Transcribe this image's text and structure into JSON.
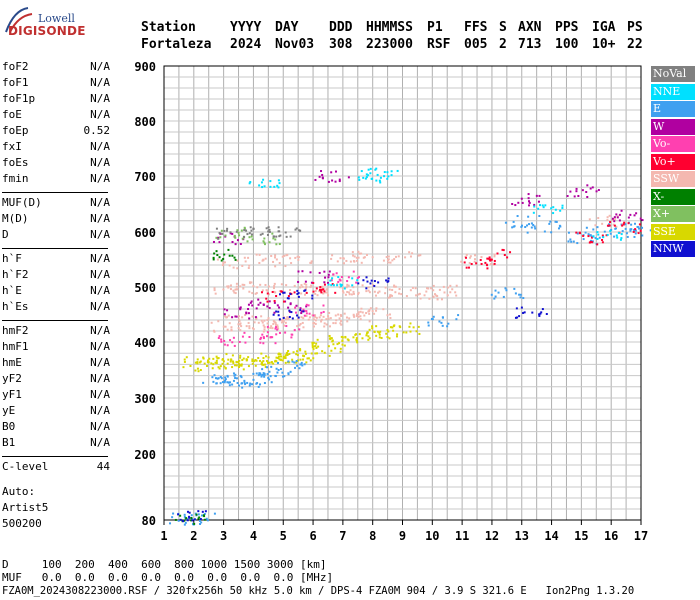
{
  "logo": {
    "top": "Lowell",
    "bottom": "DIGISONDE"
  },
  "header": {
    "line1": [
      "Station",
      "YYYY",
      "DAY",
      "DDD",
      "HHMMSS",
      "P1",
      "FFS",
      "S",
      "AXN",
      "PPS",
      "IGA",
      "PS"
    ],
    "line2": [
      "Fortaleza",
      "2024",
      "Nov03",
      "308",
      "223000",
      "RSF",
      "005",
      "2",
      "713",
      "100",
      "10+",
      "22"
    ]
  },
  "params": [
    {
      "name": "foF2",
      "value": "N/A"
    },
    {
      "name": "foF1",
      "value": "N/A"
    },
    {
      "name": "foF1p",
      "value": "N/A"
    },
    {
      "name": "foE",
      "value": "N/A"
    },
    {
      "name": "foEp",
      "value": "0.52"
    },
    {
      "name": "fxI",
      "value": "N/A"
    },
    {
      "name": "foEs",
      "value": "N/A"
    },
    {
      "name": "fmin",
      "value": "N/A"
    },
    {
      "name": "MUF(D)",
      "value": "N/A"
    },
    {
      "name": "M(D)",
      "value": "N/A"
    },
    {
      "name": "D",
      "value": "N/A"
    },
    {
      "name": "h`F",
      "value": "N/A"
    },
    {
      "name": "h`F2",
      "value": "N/A"
    },
    {
      "name": "h`E",
      "value": "N/A"
    },
    {
      "name": "h`Es",
      "value": "N/A"
    },
    {
      "name": "hmF2",
      "value": "N/A"
    },
    {
      "name": "hmF1",
      "value": "N/A"
    },
    {
      "name": "hmE",
      "value": "N/A"
    },
    {
      "name": "yF2",
      "value": "N/A"
    },
    {
      "name": "yF1",
      "value": "N/A"
    },
    {
      "name": "yE",
      "value": "N/A"
    },
    {
      "name": "B0",
      "value": "N/A"
    },
    {
      "name": "B1",
      "value": "N/A"
    },
    {
      "name": "C-level",
      "value": "44"
    }
  ],
  "auto": {
    "label": "Auto:",
    "name": "Artist5",
    "version": "500200"
  },
  "footer": {
    "d_row": "D     100  200  400  600  800 1000 1500 3000 [km]",
    "muf_row": "MUF   0.0  0.0  0.0  0.0  0.0  0.0  0.0  0.0 [MHz]",
    "file_row": "FZA0M_2024308223000.RSF / 320fx256h 50 kHz 5.0 km / DPS-4 FZA0M 904 / 3.9 S 321.6 E   Ion2Png 1.3.20"
  },
  "legend": [
    {
      "label": "NoVal",
      "color": "#808080"
    },
    {
      "label": "NNE",
      "color": "#00e0ff"
    },
    {
      "label": "E",
      "color": "#3fa0f0"
    },
    {
      "label": "W",
      "color": "#b000a0"
    },
    {
      "label": "Vo-",
      "color": "#ff40b0"
    },
    {
      "label": "Vo+",
      "color": "#ff0030"
    },
    {
      "label": "SSW",
      "color": "#f4b8b0"
    },
    {
      "label": "X-",
      "color": "#008000"
    },
    {
      "label": "X+",
      "color": "#80c060"
    },
    {
      "label": "SSE",
      "color": "#d8d800"
    },
    {
      "label": "NNW",
      "color": "#1010d0"
    }
  ],
  "chart_data": {
    "type": "scatter",
    "x_ticks": [
      1,
      2,
      3,
      4,
      5,
      6,
      7,
      8,
      9,
      10,
      11,
      12,
      13,
      14,
      15,
      16,
      17
    ],
    "y_ticks": [
      80,
      200,
      300,
      400,
      500,
      600,
      700,
      800,
      900
    ],
    "xlim": [
      1,
      17
    ],
    "ylim": [
      80,
      900
    ],
    "grid": true,
    "legend_position": "right",
    "series": [
      {
        "name": "SSE",
        "color": "#d8d800",
        "points": [
          [
            2.1,
            365
          ],
          [
            2.5,
            360
          ],
          [
            3.0,
            370
          ],
          [
            3.3,
            365
          ],
          [
            3.6,
            360
          ],
          [
            4.0,
            368
          ],
          [
            4.3,
            372
          ],
          [
            4.6,
            366
          ],
          [
            5.0,
            370
          ],
          [
            5.3,
            375
          ],
          [
            5.6,
            378
          ],
          [
            6.0,
            385
          ],
          [
            6.5,
            395
          ],
          [
            7.0,
            405
          ],
          [
            7.5,
            410
          ],
          [
            8.0,
            415
          ],
          [
            8.5,
            420
          ],
          [
            9.0,
            425
          ]
        ]
      },
      {
        "name": "E",
        "color": "#3fa0f0",
        "points": [
          [
            2.8,
            335
          ],
          [
            3.2,
            330
          ],
          [
            3.6,
            332
          ],
          [
            4.0,
            335
          ],
          [
            4.4,
            338
          ],
          [
            4.8,
            350
          ],
          [
            5.2,
            360
          ],
          [
            1.7,
            83
          ],
          [
            2.2,
            85
          ],
          [
            10.3,
            440
          ],
          [
            12.5,
            490
          ],
          [
            13.0,
            620
          ],
          [
            13.7,
            610
          ],
          [
            15.0,
            590
          ],
          [
            15.6,
            600
          ],
          [
            16.3,
            610
          ],
          [
            16.9,
            600
          ]
        ]
      },
      {
        "name": "SSW",
        "color": "#f4b8b0",
        "points": [
          [
            3.0,
            430
          ],
          [
            3.5,
            440
          ],
          [
            4.0,
            430
          ],
          [
            4.5,
            440
          ],
          [
            5.0,
            435
          ],
          [
            5.5,
            440
          ],
          [
            6.0,
            438
          ],
          [
            6.5,
            440
          ],
          [
            7.0,
            445
          ],
          [
            7.5,
            450
          ],
          [
            8.0,
            455
          ],
          [
            3.1,
            498
          ],
          [
            3.8,
            500
          ],
          [
            4.5,
            495
          ],
          [
            5.2,
            498
          ],
          [
            6.0,
            495
          ],
          [
            6.8,
            498
          ],
          [
            7.5,
            495
          ],
          [
            8.3,
            492
          ],
          [
            9.0,
            495
          ],
          [
            10.0,
            490
          ],
          [
            10.4,
            495
          ],
          [
            3.3,
            545
          ],
          [
            4.5,
            550
          ],
          [
            5.5,
            550
          ],
          [
            7.0,
            555
          ],
          [
            8.0,
            555
          ],
          [
            9.0,
            555
          ],
          [
            11.5,
            550
          ],
          [
            15.8,
            620
          ]
        ]
      },
      {
        "name": "W",
        "color": "#b000a0",
        "points": [
          [
            3.5,
            455
          ],
          [
            4.0,
            470
          ],
          [
            5.2,
            465
          ],
          [
            6.0,
            520
          ],
          [
            3.2,
            590
          ],
          [
            6.6,
            700
          ],
          [
            13.2,
            660
          ],
          [
            15.0,
            675
          ],
          [
            16.5,
            630
          ]
        ]
      },
      {
        "name": "Vo-",
        "color": "#ff40b0",
        "points": [
          [
            3.3,
            405
          ],
          [
            4.2,
            410
          ],
          [
            5.0,
            420
          ],
          [
            5.8,
            460
          ],
          [
            7.0,
            520
          ]
        ]
      },
      {
        "name": "Vo+",
        "color": "#ff0030",
        "points": [
          [
            4.8,
            485
          ],
          [
            6.2,
            500
          ],
          [
            11.6,
            545
          ],
          [
            12.3,
            560
          ],
          [
            15.3,
            590
          ],
          [
            16.4,
            610
          ]
        ]
      },
      {
        "name": "NNE",
        "color": "#00e0ff",
        "points": [
          [
            8.0,
            700
          ],
          [
            8.3,
            705
          ],
          [
            4.4,
            690
          ],
          [
            7.0,
            510
          ],
          [
            13.8,
            640
          ],
          [
            15.9,
            595
          ]
        ]
      },
      {
        "name": "X-",
        "color": "#008000",
        "points": [
          [
            3.0,
            560
          ],
          [
            1.9,
            85
          ]
        ]
      },
      {
        "name": "X+",
        "color": "#80c060",
        "points": [
          [
            3.2,
            600
          ],
          [
            4.3,
            590
          ]
        ]
      },
      {
        "name": "NNW",
        "color": "#1010d0",
        "points": [
          [
            2.0,
            88
          ],
          [
            5.4,
            490
          ],
          [
            5.2,
            450
          ],
          [
            8.0,
            510
          ],
          [
            13.3,
            455
          ]
        ]
      },
      {
        "name": "NoVal",
        "color": "#808080",
        "points": [
          [
            3.3,
            600
          ],
          [
            4.3,
            600
          ],
          [
            5.0,
            600
          ]
        ]
      }
    ]
  }
}
